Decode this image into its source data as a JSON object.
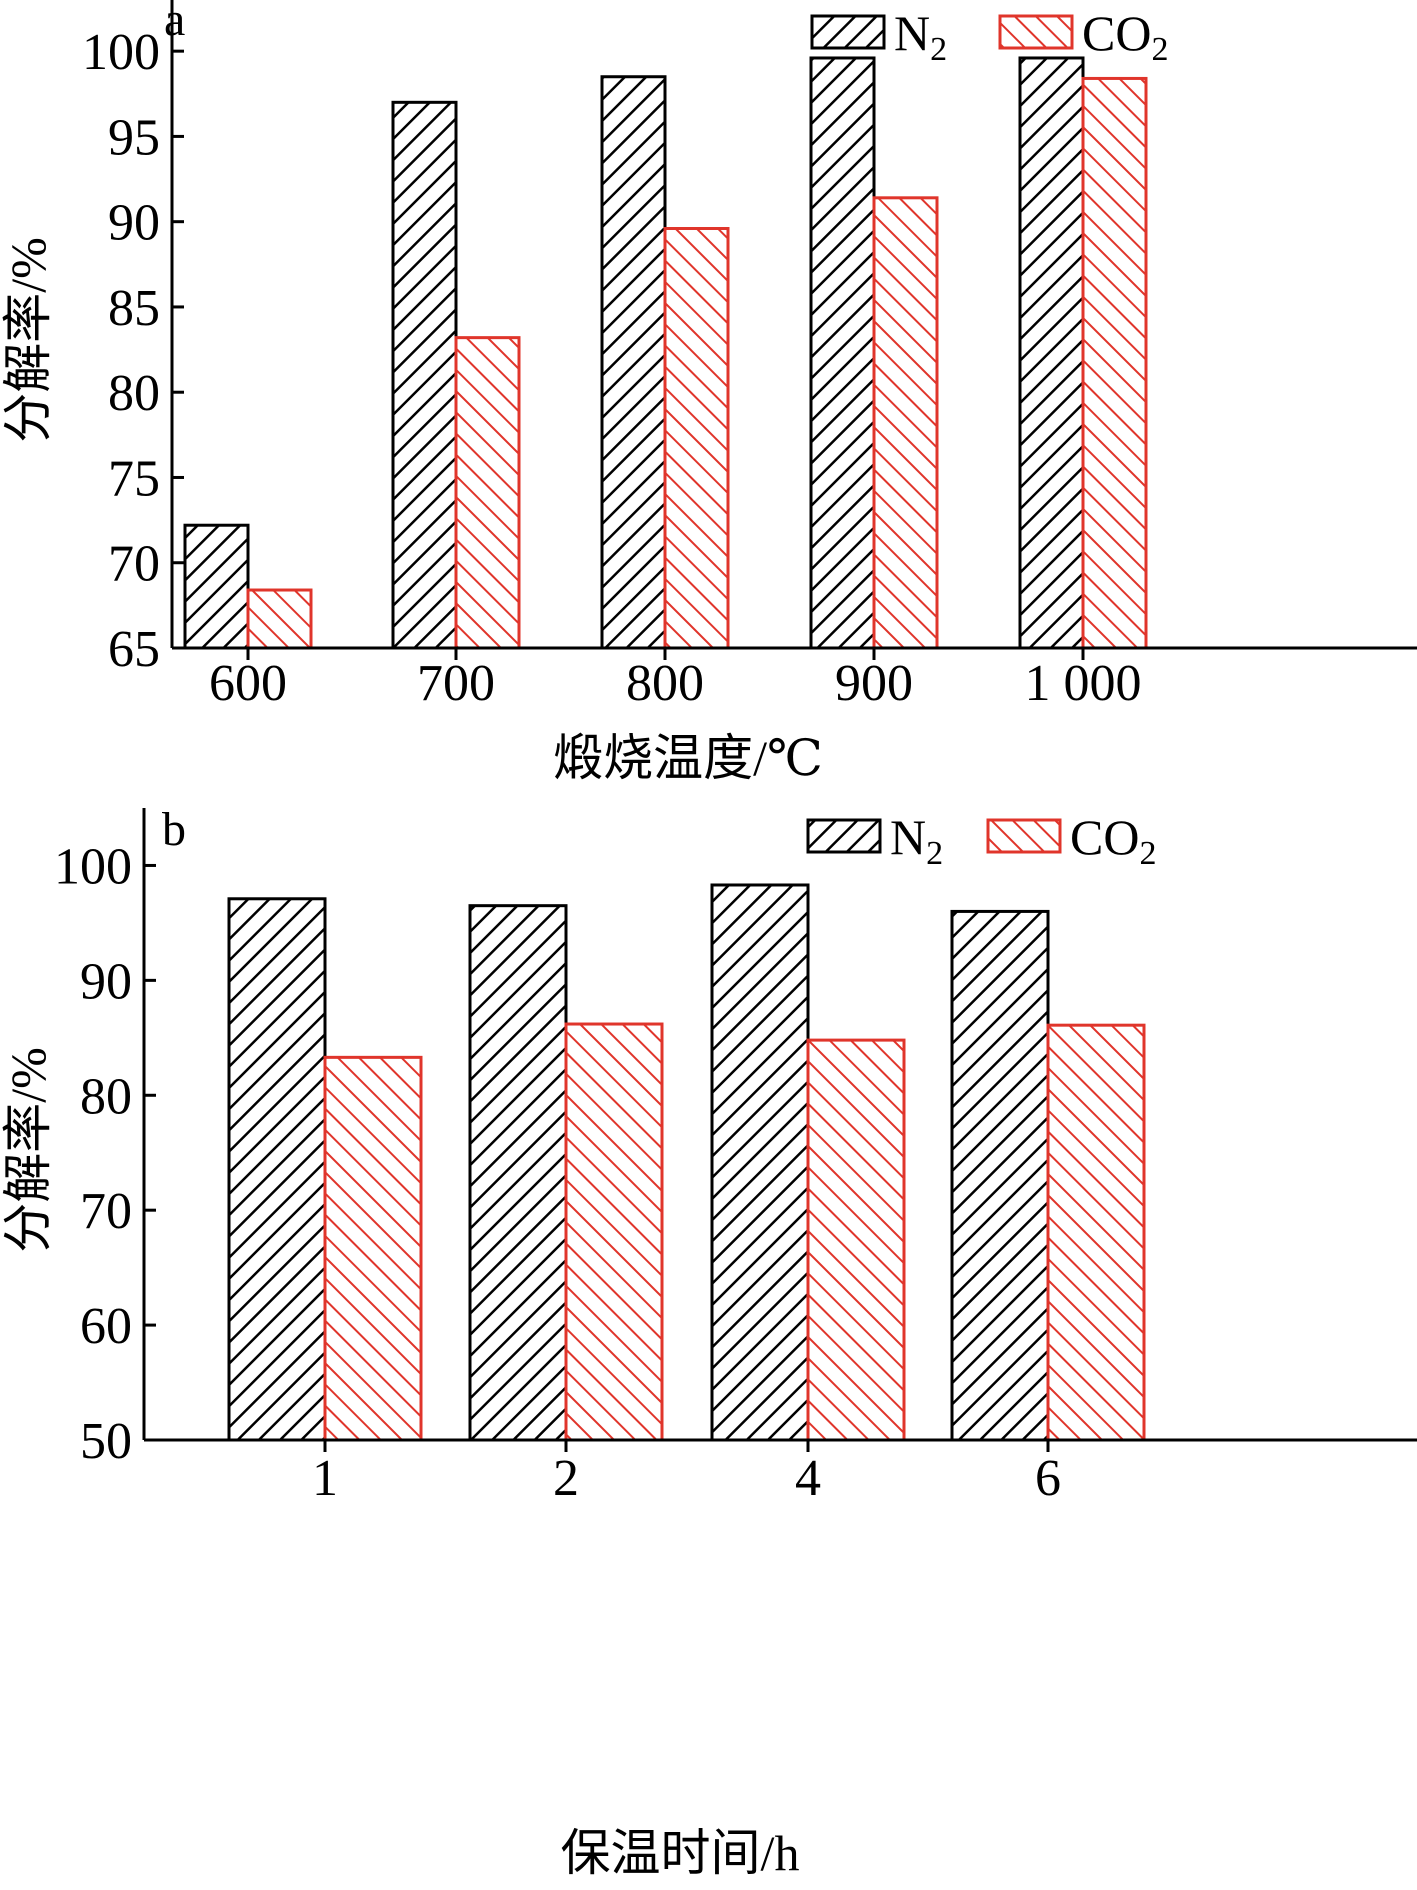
{
  "colors": {
    "n2": "#000000",
    "co2": "#e0352b",
    "axis": "#000000"
  },
  "chart_data": [
    {
      "type": "bar",
      "panel": "a",
      "categories": [
        "600",
        "700",
        "800",
        "900",
        "1 000"
      ],
      "xlabel": "煅烧温度/℃",
      "ylabel": "分解率/%",
      "ylim": [
        65,
        103
      ],
      "yticks": [
        "65",
        "70",
        "75",
        "80",
        "85",
        "90",
        "95",
        "100"
      ],
      "legend": "top-right",
      "legend_items": [
        {
          "base": "N",
          "sub": "2"
        },
        {
          "base": "CO",
          "sub": "2"
        }
      ],
      "series": [
        {
          "name": "N2",
          "values": [
            72.2,
            97.0,
            98.5,
            99.6,
            99.6
          ]
        },
        {
          "name": "CO2",
          "values": [
            68.4,
            83.2,
            89.6,
            91.4,
            98.4
          ]
        }
      ]
    },
    {
      "type": "bar",
      "panel": "b",
      "categories": [
        "1",
        "2",
        "4",
        "6"
      ],
      "xlabel": "保温时间/h",
      "ylabel": "分解率/%",
      "ylim": [
        50,
        105
      ],
      "yticks": [
        "50",
        "60",
        "70",
        "80",
        "90",
        "100"
      ],
      "legend": "top-right",
      "legend_items": [
        {
          "base": "N",
          "sub": "2"
        },
        {
          "base": "CO",
          "sub": "2"
        }
      ],
      "series": [
        {
          "name": "N2",
          "values": [
            97.1,
            96.5,
            98.3,
            96.0
          ]
        },
        {
          "name": "CO2",
          "values": [
            83.3,
            86.2,
            84.8,
            86.1
          ]
        }
      ]
    }
  ]
}
